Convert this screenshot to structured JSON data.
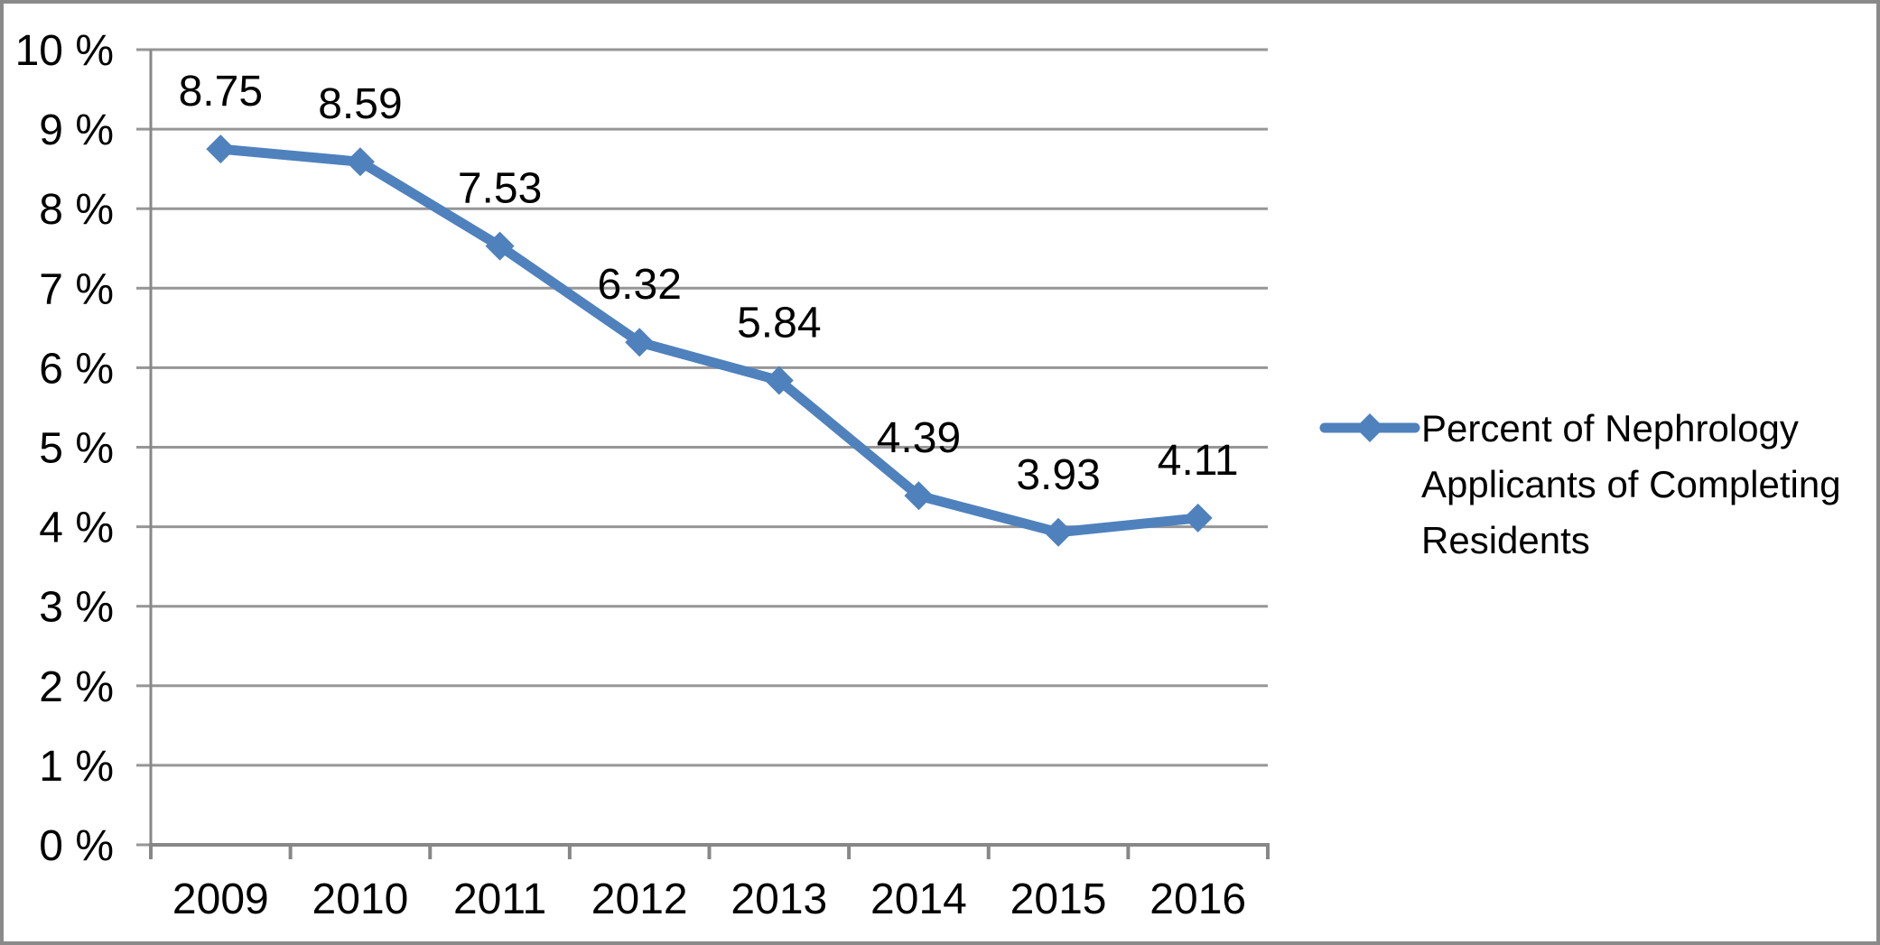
{
  "chart_data": {
    "type": "line",
    "title": "",
    "categories": [
      "2009",
      "2010",
      "2011",
      "2012",
      "2013",
      "2014",
      "2015",
      "2016"
    ],
    "series": [
      {
        "name": "Percent of Nephrology Applicants of Completing Residents",
        "values": [
          8.75,
          8.59,
          7.53,
          6.32,
          5.84,
          4.39,
          3.93,
          4.11
        ]
      }
    ],
    "data_labels": [
      "8.75",
      "8.59",
      "7.53",
      "6.32",
      "5.84",
      "4.39",
      "3.93",
      "4.11"
    ],
    "y_tick_labels": [
      "0 %",
      "1 %",
      "2 %",
      "3 %",
      "4 %",
      "5 %",
      "6 %",
      "7 %",
      "8 %",
      "9 %",
      "10 %"
    ],
    "ylim": [
      0,
      10
    ],
    "y_step": 1,
    "grid": true,
    "legend_position": "right",
    "legend_display_lines": {
      "line1": "Percent of Nephrology",
      "line2": "Applicants of Completing",
      "line3": "Residents"
    },
    "colors": {
      "series": "#4F81BD",
      "gridline": "#969696",
      "axis": "#878787",
      "text": "#000000",
      "border": "#8a8a8a",
      "background": "#ffffff"
    }
  }
}
